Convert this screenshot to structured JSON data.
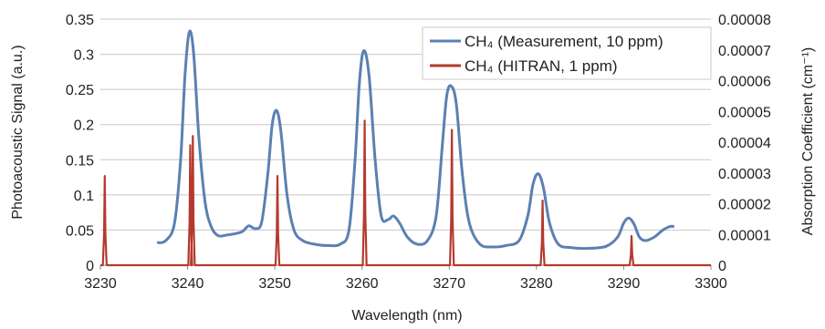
{
  "chart_data": {
    "type": "line",
    "x_label": "Wavelength (nm)",
    "y_label_left": "Photoacoustic Signal (a.u.)",
    "y_label_right": "Absorption Coefficient (cm⁻¹)",
    "xlim": [
      3230,
      3300
    ],
    "ylim_left": [
      0,
      0.35
    ],
    "ylim_right": [
      0,
      8e-05
    ],
    "x_ticks": [
      "3230",
      "3240",
      "3250",
      "3260",
      "3270",
      "3280",
      "3290",
      "3300"
    ],
    "y_ticks_left": [
      "0",
      "0.05",
      "0.1",
      "0.15",
      "0.2",
      "0.25",
      "0.3",
      "0.35"
    ],
    "y_ticks_right": [
      "0",
      "0.00001",
      "0.00002",
      "0.00003",
      "0.00004",
      "0.00005",
      "0.00006",
      "0.00007",
      "0.00008"
    ],
    "grid": "horizontal",
    "legend_position": "top-right",
    "series": [
      {
        "name": "CH₄ (Measurement, 10 ppm)",
        "axis": "left",
        "color": "#5b80b2",
        "x": [
          3236.5,
          3237.5,
          3238.5,
          3239.2,
          3239.7,
          3240.2,
          3240.7,
          3241.3,
          3242.0,
          3242.7,
          3243.5,
          3244.5,
          3245.5,
          3246.3,
          3247.0,
          3247.8,
          3248.5,
          3249.2,
          3249.7,
          3250.2,
          3250.7,
          3251.4,
          3252.2,
          3253.2,
          3254.5,
          3256.0,
          3257.5,
          3258.5,
          3259.2,
          3259.7,
          3260.2,
          3260.8,
          3261.5,
          3262.2,
          3263.0,
          3263.6,
          3264.3,
          3265.2,
          3266.3,
          3267.5,
          3268.5,
          3269.2,
          3269.7,
          3270.2,
          3270.8,
          3271.5,
          3272.3,
          3273.5,
          3275.0,
          3276.5,
          3278.0,
          3279.0,
          3279.6,
          3280.2,
          3280.8,
          3281.5,
          3282.5,
          3284.0,
          3286.0,
          3288.0,
          3289.3,
          3290.0,
          3290.6,
          3291.2,
          3291.8,
          3292.5,
          3293.5,
          3294.5,
          3295.3,
          3295.8
        ],
        "y": [
          0.032,
          0.035,
          0.06,
          0.15,
          0.27,
          0.332,
          0.3,
          0.18,
          0.09,
          0.055,
          0.042,
          0.043,
          0.045,
          0.048,
          0.056,
          0.052,
          0.062,
          0.13,
          0.2,
          0.22,
          0.19,
          0.1,
          0.05,
          0.035,
          0.03,
          0.028,
          0.03,
          0.05,
          0.15,
          0.26,
          0.305,
          0.27,
          0.15,
          0.07,
          0.065,
          0.07,
          0.06,
          0.04,
          0.03,
          0.035,
          0.07,
          0.17,
          0.24,
          0.255,
          0.23,
          0.13,
          0.06,
          0.03,
          0.026,
          0.028,
          0.035,
          0.07,
          0.115,
          0.13,
          0.11,
          0.06,
          0.03,
          0.025,
          0.024,
          0.027,
          0.04,
          0.06,
          0.067,
          0.058,
          0.04,
          0.035,
          0.04,
          0.05,
          0.055,
          0.055
        ]
      },
      {
        "name": "CH₄ (HITRAN, 1 ppm)",
        "axis": "right",
        "color": "#b43a2e",
        "peaks": [
          {
            "x": 3230.5,
            "y": 2.9e-05
          },
          {
            "x": 3240.3,
            "y": 3.9e-05
          },
          {
            "x": 3240.6,
            "y": 4.2e-05
          },
          {
            "x": 3250.3,
            "y": 2.9e-05
          },
          {
            "x": 3260.3,
            "y": 4.7e-05
          },
          {
            "x": 3270.3,
            "y": 4.4e-05
          },
          {
            "x": 3280.7,
            "y": 2.1e-05
          },
          {
            "x": 3290.9,
            "y": 9.5e-06
          }
        ]
      }
    ]
  }
}
